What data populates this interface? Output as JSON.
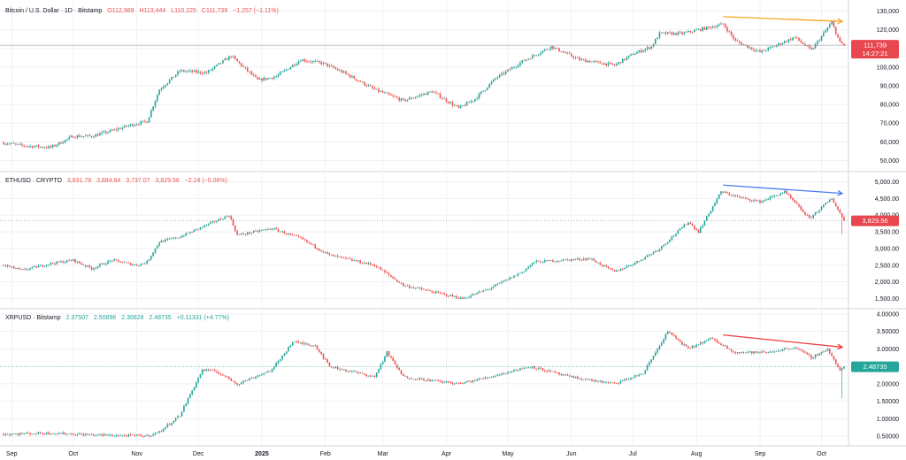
{
  "colors": {
    "up": "#26a69a",
    "down": "#ef5350",
    "grid": "#e6e9ef",
    "border": "#d1d4dc",
    "text": "#131722",
    "orange_trend": "#f5a623",
    "blue_trend": "#4a7cf0",
    "red_trend": "#ef4040",
    "btc_badge": "#e9474f",
    "eth_badge": "#e9474f",
    "xrp_badge": "#26a69a"
  },
  "x_axis": {
    "labels": [
      "Sep",
      "Oct",
      "Nov",
      "Dec",
      "2025",
      "Feb",
      "Mar",
      "Apr",
      "May",
      "Jun",
      "Jul",
      "Aug",
      "Sep",
      "Oct"
    ],
    "bold_label": "2025"
  },
  "panes": [
    {
      "id": "btc",
      "legend": {
        "title": "Bitcoin / U.S. Dollar · 1D · Bitstamp",
        "o": "O112,989",
        "h": "H113,444",
        "l": "L110,225",
        "c": "C111,739",
        "change": "−1,257 (−1.11%)"
      },
      "ticks": [
        "130,000",
        "120,000",
        "110,000",
        "100,000",
        "90,000",
        "80,000",
        "70,000",
        "60,000",
        "50,000"
      ],
      "badge": {
        "price": "111,739",
        "countdown": "14:27:21"
      }
    },
    {
      "id": "eth",
      "legend": {
        "title": "ETHUSD · CRYPTO",
        "o": "3,831.78",
        "h": "3,884.84",
        "l": "3,737.07",
        "c": "3,829.56",
        "change": "−2.24 (−0.06%)"
      },
      "ticks": [
        "5,000.00",
        "4,500.00",
        "4,000.00",
        "3,500.00",
        "3,000.00",
        "2,500.00",
        "2,000.00",
        "1,500.00"
      ],
      "badge": {
        "price": "3,829.56"
      }
    },
    {
      "id": "xrp",
      "legend": {
        "title": "XRPUSD · Bitstamp",
        "o": "2.37507",
        "h": "2.50896",
        "l": "2.30628",
        "c": "2.48735",
        "change": "+0.11331 (+4.77%)"
      },
      "ticks": [
        "4.00000",
        "3.50000",
        "3.00000",
        "2.50000",
        "2.00000",
        "1.50000",
        "1.00000",
        "0.50000"
      ],
      "badge": {
        "price": "2.48735"
      }
    }
  ],
  "chart_data": [
    {
      "type": "line",
      "title": "Bitcoin / U.S. Dollar · 1D · Bitstamp",
      "ohlc_last": {
        "open": 112989,
        "high": 113444,
        "low": 110225,
        "close": 111739,
        "change": -1257,
        "change_pct": -1.11
      },
      "ylim": [
        45000,
        135000
      ],
      "y_ticks": [
        130000,
        120000,
        110000,
        100000,
        90000,
        80000,
        70000,
        60000,
        50000
      ],
      "x": [
        "2024-08-28",
        "2024-09-06",
        "2024-09-20",
        "2024-10-01",
        "2024-10-10",
        "2024-10-20",
        "2024-10-29",
        "2024-11-06",
        "2024-11-12",
        "2024-11-22",
        "2024-12-05",
        "2024-12-17",
        "2024-12-30",
        "2025-01-08",
        "2025-01-20",
        "2025-01-31",
        "2025-02-10",
        "2025-02-25",
        "2025-03-04",
        "2025-03-11",
        "2025-03-25",
        "2025-04-07",
        "2025-04-15",
        "2025-04-25",
        "2025-05-08",
        "2025-05-22",
        "2025-06-05",
        "2025-06-22",
        "2025-07-01",
        "2025-07-10",
        "2025-07-14",
        "2025-07-25",
        "2025-08-14",
        "2025-08-20",
        "2025-09-01",
        "2025-09-18",
        "2025-09-26",
        "2025-10-06",
        "2025-10-10",
        "2025-10-12"
      ],
      "series": [
        {
          "values": [
            59500,
            58000,
            57000,
            63000,
            63000,
            66000,
            69000,
            71000,
            88000,
            98000,
            97000,
            106000,
            93000,
            95000,
            104000,
            102000,
            97000,
            88000,
            85000,
            82000,
            87000,
            78000,
            83000,
            94000,
            103000,
            111000,
            104000,
            101000,
            107000,
            111000,
            118000,
            118000,
            123000,
            114000,
            108000,
            116000,
            109000,
            124000,
            113000,
            111739
          ]
        }
      ],
      "trendline": {
        "x": [
          "2025-08-14",
          "2025-10-12"
        ],
        "values": [
          127000,
          124500
        ]
      }
    },
    {
      "type": "line",
      "title": "ETHUSD · CRYPTO",
      "ohlc_last": {
        "open": 3831.78,
        "high": 3884.84,
        "low": 3737.07,
        "close": 3829.56,
        "change": -2.24,
        "change_pct": -0.06
      },
      "ylim": [
        1250,
        5250
      ],
      "y_ticks": [
        5000,
        4500,
        4000,
        3500,
        3000,
        2500,
        2000,
        1500
      ],
      "x": [
        "2024-08-28",
        "2024-09-06",
        "2024-09-20",
        "2024-10-01",
        "2024-10-10",
        "2024-10-20",
        "2024-11-01",
        "2024-11-06",
        "2024-11-12",
        "2024-11-22",
        "2024-12-05",
        "2024-12-16",
        "2024-12-20",
        "2025-01-06",
        "2025-01-20",
        "2025-02-03",
        "2025-02-25",
        "2025-03-11",
        "2025-04-09",
        "2025-04-22",
        "2025-05-08",
        "2025-05-14",
        "2025-06-10",
        "2025-06-22",
        "2025-07-03",
        "2025-07-14",
        "2025-07-28",
        "2025-08-02",
        "2025-08-13",
        "2025-08-24",
        "2025-09-01",
        "2025-09-13",
        "2025-09-25",
        "2025-10-06",
        "2025-10-12"
      ],
      "series": [
        {
          "values": [
            2500,
            2350,
            2550,
            2650,
            2400,
            2650,
            2500,
            2600,
            3200,
            3350,
            3700,
            4000,
            3400,
            3600,
            3300,
            2800,
            2500,
            1900,
            1500,
            1800,
            2300,
            2600,
            2700,
            2300,
            2600,
            3000,
            3800,
            3500,
            4700,
            4500,
            4400,
            4700,
            3900,
            4500,
            3829.56
          ]
        }
      ],
      "trendline": {
        "x": [
          "2025-08-14",
          "2025-10-12"
        ],
        "values": [
          4900,
          4650
        ]
      }
    },
    {
      "type": "line",
      "title": "XRPUSD · Bitstamp",
      "ohlc_last": {
        "open": 2.37507,
        "high": 2.50896,
        "low": 2.30628,
        "close": 2.48735,
        "change": 0.11331,
        "change_pct": 4.77
      },
      "ylim": [
        0.25,
        4.1
      ],
      "y_ticks": [
        4.0,
        3.5,
        3.0,
        2.5,
        2.0,
        1.5,
        1.0,
        0.5
      ],
      "x": [
        "2024-08-28",
        "2024-09-20",
        "2024-10-10",
        "2024-10-25",
        "2024-11-06",
        "2024-11-12",
        "2024-11-22",
        "2024-12-03",
        "2024-12-10",
        "2024-12-20",
        "2025-01-06",
        "2025-01-16",
        "2025-01-27",
        "2025-02-03",
        "2025-02-25",
        "2025-03-03",
        "2025-03-11",
        "2025-04-07",
        "2025-04-22",
        "2025-05-12",
        "2025-05-31",
        "2025-06-22",
        "2025-07-06",
        "2025-07-18",
        "2025-07-28",
        "2025-08-08",
        "2025-08-20",
        "2025-09-05",
        "2025-09-18",
        "2025-09-26",
        "2025-10-04",
        "2025-10-10",
        "2025-10-12"
      ],
      "series": [
        {
          "values": [
            0.56,
            0.59,
            0.54,
            0.52,
            0.51,
            0.62,
            1.1,
            2.4,
            2.35,
            2.0,
            2.4,
            3.2,
            3.1,
            2.5,
            2.2,
            2.9,
            2.2,
            2.0,
            2.2,
            2.5,
            2.2,
            2.0,
            2.3,
            3.5,
            3.0,
            3.3,
            2.9,
            2.9,
            3.05,
            2.75,
            3.0,
            2.37,
            2.48735
          ]
        }
      ],
      "trendline": {
        "x": [
          "2025-08-14",
          "2025-10-12"
        ],
        "values": [
          3.4,
          3.05
        ]
      }
    }
  ]
}
